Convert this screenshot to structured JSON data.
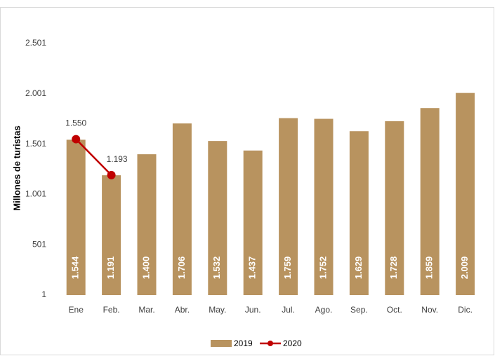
{
  "chart_data": {
    "type": "bar",
    "y_label": "Millones de turistas",
    "categories": [
      "Ene",
      "Feb.",
      "Mar.",
      "Abr.",
      "May.",
      "Jun.",
      "Jul.",
      "Ago.",
      "Sep.",
      "Oct.",
      "Nov.",
      "Dic."
    ],
    "series": [
      {
        "name": "2019",
        "type": "bar",
        "color": "#b8935f",
        "values": [
          1544,
          1191,
          1400,
          1706,
          1532,
          1437,
          1759,
          1752,
          1629,
          1728,
          1859,
          2009
        ],
        "value_labels": [
          "1.544",
          "1.191",
          "1.400",
          "1.706",
          "1.532",
          "1.437",
          "1.759",
          "1.752",
          "1.629",
          "1.728",
          "1.859",
          "2.009"
        ]
      },
      {
        "name": "2020",
        "type": "line",
        "color": "#c00000",
        "values": [
          1550,
          1193,
          null,
          null,
          null,
          null,
          null,
          null,
          null,
          null,
          null,
          null
        ],
        "value_labels": [
          "1.550",
          "1.193",
          null,
          null,
          null,
          null,
          null,
          null,
          null,
          null,
          null,
          null
        ]
      }
    ],
    "ylim": [
      1,
      2501
    ],
    "yticks": [
      1,
      501,
      {
        "value": 1001,
        "label": "1.001"
      },
      {
        "value": 1501,
        "label": "1.501"
      },
      {
        "value": 2001,
        "label": "2.001"
      },
      {
        "value": 2501,
        "label": "2.501"
      }
    ],
    "legend": "bottom"
  }
}
